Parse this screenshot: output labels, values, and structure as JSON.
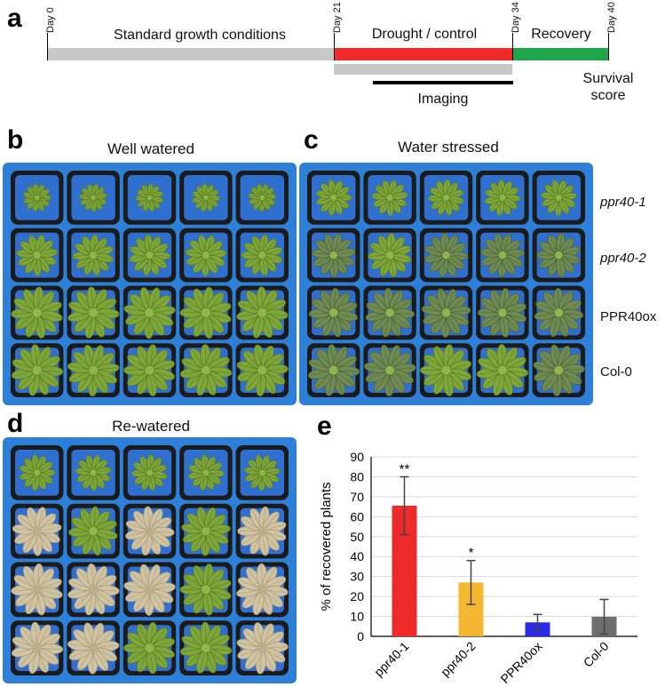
{
  "panels": {
    "a": "a",
    "b": "b",
    "c": "c",
    "d": "d",
    "e": "e"
  },
  "timeline": {
    "days": [
      "Day 0",
      "Day 21",
      "Day 34",
      "Day 40"
    ],
    "segments": [
      {
        "label": "Standard growth conditions",
        "color": "#c8c8c8"
      },
      {
        "label": "Drought / control",
        "color": "#ee2a2a"
      },
      {
        "label": "Recovery",
        "color": "#1fa54a"
      }
    ],
    "imaging_label": "Imaging",
    "survival_label": [
      "Survival",
      "score"
    ]
  },
  "photos": {
    "b_title": "Well watered",
    "c_title": "Water stressed",
    "d_title": "Re-watered",
    "tray_color": "#2e7fd8",
    "genotypes": [
      {
        "label": "ppr40-1",
        "italic": true
      },
      {
        "label": "ppr40-2",
        "italic": true
      },
      {
        "label": "PPR40ox",
        "italic": false
      },
      {
        "label": "Col-0",
        "italic": false
      }
    ]
  },
  "chart_data": {
    "type": "bar",
    "categories": [
      "ppr40-1",
      "ppr40-2",
      "PPR40ox",
      "Col-0"
    ],
    "values": [
      65.5,
      27,
      7,
      9.8
    ],
    "errors": [
      14.5,
      11,
      4,
      8.7
    ],
    "significance": [
      "**",
      "*",
      "",
      ""
    ],
    "colors": [
      "#ee2a2a",
      "#f5b731",
      "#2a2ae8",
      "#6e6e6e"
    ],
    "ylabel": "% of recovered plants",
    "ylim": [
      0,
      90
    ],
    "yticks": [
      0,
      10,
      20,
      30,
      40,
      50,
      60,
      70,
      80,
      90
    ],
    "grid": true
  }
}
